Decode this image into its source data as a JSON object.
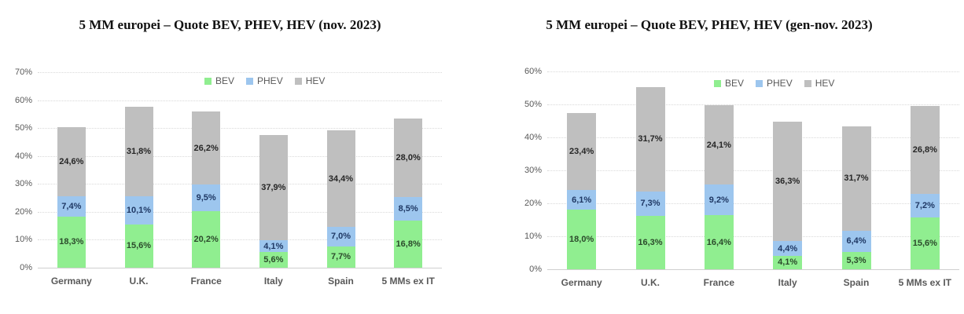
{
  "page": {
    "background": "#ffffff"
  },
  "colors": {
    "bev": "#90EE90",
    "phev": "#9DC6EE",
    "hev": "#BFBFBF",
    "gridline": "#d9d9d9",
    "axis_line": "#cfcfcf",
    "tick_label": "#595959",
    "category_label": "#595959",
    "legend_label": "#595959",
    "title": "#111111"
  },
  "chart_data": [
    {
      "type": "bar",
      "stacked": true,
      "title": "5 MM europei – Quote BEV, PHEV, HEV (nov. 2023)",
      "categories": [
        "Germany",
        "U.K.",
        "France",
        "Italy",
        "Spain",
        "5 MMs ex IT"
      ],
      "series": [
        {
          "name": "BEV",
          "color": "#90EE90",
          "label_color": "#2b4a2b",
          "values": [
            18.3,
            15.6,
            20.2,
            5.6,
            7.7,
            16.8
          ]
        },
        {
          "name": "PHEV",
          "color": "#9DC6EE",
          "label_color": "#1f3864",
          "values": [
            7.4,
            10.1,
            9.5,
            4.1,
            7.0,
            8.5
          ]
        },
        {
          "name": "HEV",
          "color": "#BFBFBF",
          "label_color": "#262626",
          "values": [
            24.6,
            31.8,
            26.2,
            37.9,
            34.4,
            28.0
          ]
        }
      ],
      "data_labels_shown": true,
      "decimal_separator": ",",
      "ylim": [
        0,
        70
      ],
      "ytick_step": 10,
      "yticks": [
        "0%",
        "10%",
        "20%",
        "30%",
        "40%",
        "50%",
        "60%",
        "70%"
      ],
      "grid": "dotted-horizontal",
      "legend_position": "top-center-inside"
    },
    {
      "type": "bar",
      "stacked": true,
      "title": "5 MM europei – Quote BEV, PHEV, HEV (gen-nov. 2023)",
      "categories": [
        "Germany",
        "U.K.",
        "France",
        "Italy",
        "Spain",
        "5 MMs ex IT"
      ],
      "series": [
        {
          "name": "BEV",
          "color": "#90EE90",
          "label_color": "#2b4a2b",
          "values": [
            18.0,
            16.3,
            16.4,
            4.1,
            5.3,
            15.6
          ]
        },
        {
          "name": "PHEV",
          "color": "#9DC6EE",
          "label_color": "#1f3864",
          "values": [
            6.1,
            7.3,
            9.2,
            4.4,
            6.4,
            7.2
          ]
        },
        {
          "name": "HEV",
          "color": "#BFBFBF",
          "label_color": "#262626",
          "values": [
            23.4,
            31.7,
            24.1,
            36.3,
            31.7,
            26.8
          ]
        }
      ],
      "data_labels_shown": true,
      "decimal_separator": ",",
      "ylim": [
        0,
        60
      ],
      "ytick_step": 10,
      "yticks": [
        "0%",
        "10%",
        "20%",
        "30%",
        "40%",
        "50%",
        "60%"
      ],
      "grid": "dotted-horizontal",
      "legend_position": "top-center-inside"
    }
  ]
}
